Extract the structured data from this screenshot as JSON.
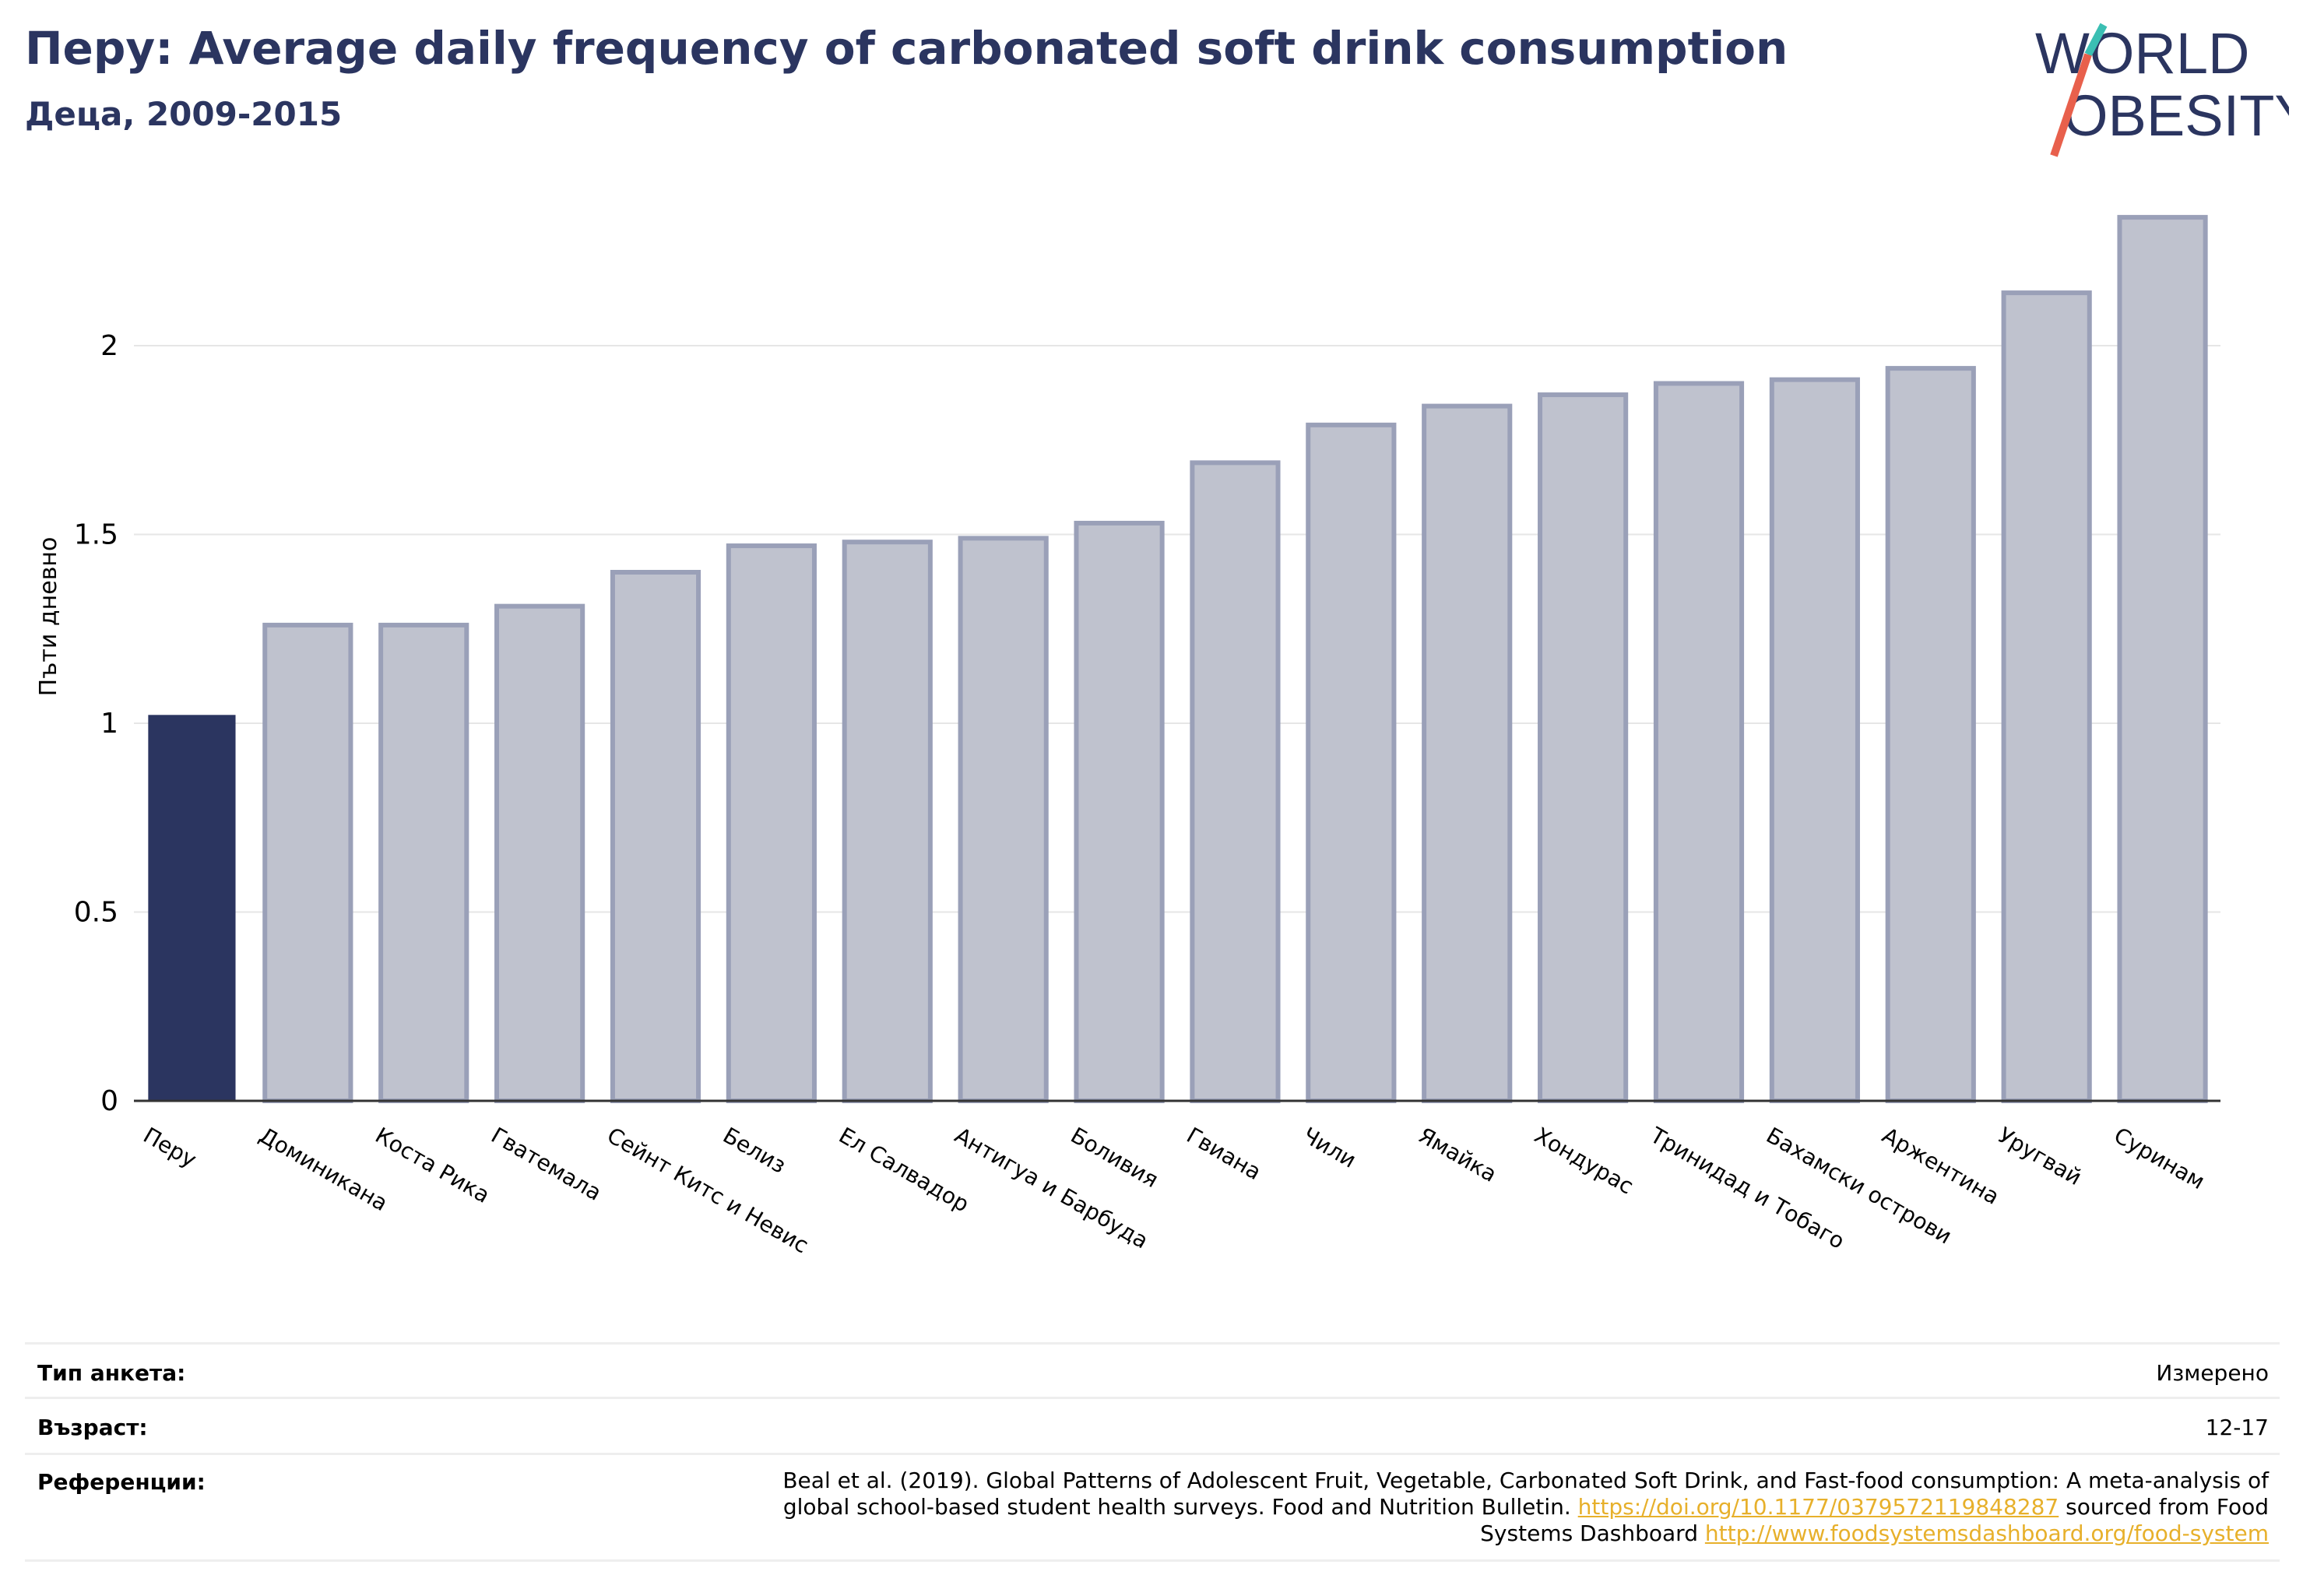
{
  "header": {
    "title": "Перу: Average daily frequency of carbonated soft drink consumption",
    "subtitle": "Деца, 2009-2015"
  },
  "logo": {
    "line1": "WORLD",
    "line2": "OBESITY"
  },
  "colors": {
    "highlight": "#2b3560",
    "bar": "#bfc2ce",
    "bar_stroke": "#9aa0b8",
    "text": "#2b3560",
    "link": "#e7b02b"
  },
  "chart_data": {
    "type": "bar",
    "ylabel": "Пъти дневно",
    "ylim": [
      0,
      2.4
    ],
    "yticks": [
      0,
      0.5,
      1,
      1.5,
      2
    ],
    "ytick_labels": [
      "0",
      "0.5",
      "1",
      "1.5",
      "2"
    ],
    "grid": true,
    "highlight": "Перу",
    "categories": [
      "Перу",
      "Доминикана",
      "Коста Рика",
      "Гватемала",
      "Сейнт Китс и Невис",
      "Белиз",
      "Ел Салвадор",
      "Антигуа и Барбуда",
      "Боливия",
      "Гвиана",
      "Чили",
      "Ямайка",
      "Хондурас",
      "Тринидад и Тобаго",
      "Бахамски острови",
      "Аржентина",
      "Уругвай",
      "Суринам"
    ],
    "values": [
      1.02,
      1.26,
      1.26,
      1.31,
      1.4,
      1.47,
      1.48,
      1.49,
      1.53,
      1.69,
      1.79,
      1.84,
      1.87,
      1.9,
      1.91,
      1.94,
      2.14,
      2.34
    ]
  },
  "info": {
    "survey_type_label": "Тип анкета:",
    "survey_type_value": "Измерено",
    "age_label": "Възраст:",
    "age_value": "12-17",
    "references_label": "Референции:",
    "ref_line1": "Beal et al. (2019). Global Patterns of Adolescent Fruit, Vegetable, Carbonated Soft Drink, and Fast-food consumption: A meta-analysis of",
    "ref_line2_pre": "global school-based student health surveys. Food and Nutrition Bulletin. ",
    "ref_link1": "https://doi.org/10.1177/0379572119848287",
    "ref_line2_post": " sourced from Food",
    "ref_line3_pre": "Systems Dashboard ",
    "ref_link2": "http://www.foodsystemsdashboard.org/food-system"
  }
}
